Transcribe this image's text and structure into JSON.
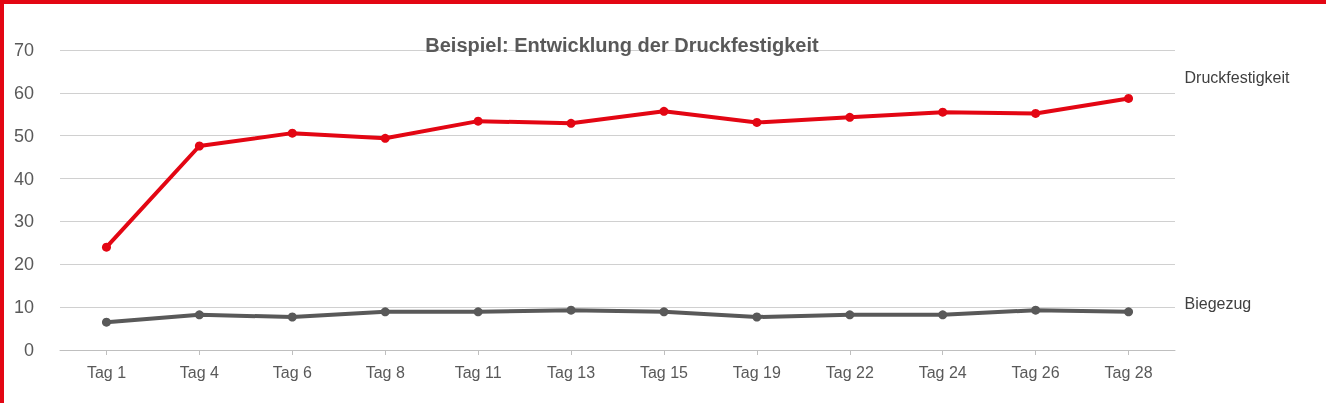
{
  "chart_data": {
    "type": "line",
    "title": "Beispiel: Entwicklung der Druckfestigkeit",
    "categories": [
      "Tag 1",
      "Tag 4",
      "Tag 6",
      "Tag 8",
      "Tag 11",
      "Tag 13",
      "Tag 15",
      "Tag 19",
      "Tag 22",
      "Tag 24",
      "Tag 26",
      "Tag 28"
    ],
    "series": [
      {
        "name": "Druckfestigkeit",
        "color": "#e30613",
        "values": [
          24.0,
          47.6,
          50.6,
          49.4,
          53.4,
          52.9,
          55.7,
          53.1,
          54.3,
          55.5,
          55.2,
          58.7
        ]
      },
      {
        "name": "Biegezug",
        "color": "#595959",
        "values": [
          6.5,
          8.2,
          7.7,
          8.9,
          8.9,
          9.3,
          8.9,
          7.7,
          8.2,
          8.2,
          9.3,
          8.9
        ]
      }
    ],
    "ylim": [
      0,
      70
    ],
    "yticks": [
      0,
      10,
      20,
      30,
      40,
      50,
      60,
      70
    ],
    "grid": "y",
    "legend": false,
    "marker": "circle",
    "line_style": "solid"
  }
}
